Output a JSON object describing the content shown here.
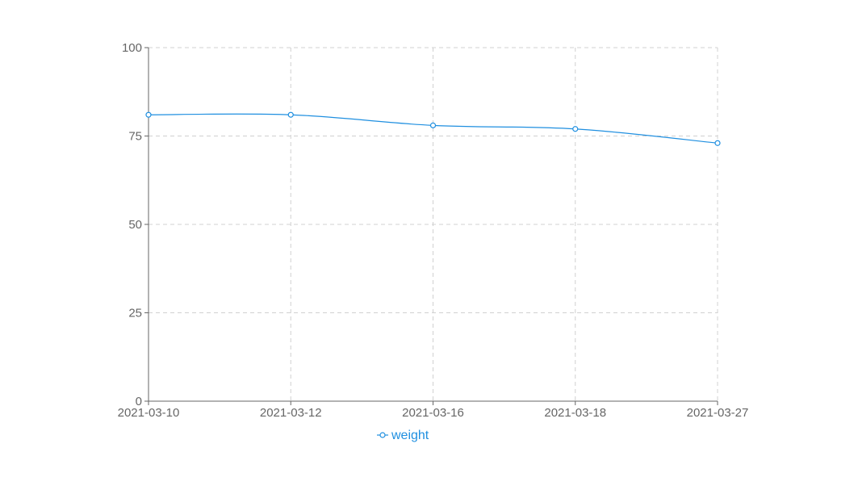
{
  "chart_data": {
    "type": "line",
    "x": [
      "2021-03-10",
      "2021-03-12",
      "2021-03-16",
      "2021-03-18",
      "2021-03-27"
    ],
    "series": [
      {
        "name": "weight",
        "values": [
          81,
          81,
          78,
          77,
          73
        ]
      }
    ],
    "y_ticks": [
      "0",
      "25",
      "50",
      "75",
      "100"
    ],
    "x_tick_labels": [
      "2021-03-10",
      "2021-03-12",
      "2021-03-16",
      "2021-03-18",
      "2021-03-27"
    ],
    "ylim": [
      0,
      100
    ],
    "x_scale": "category",
    "grid": "on (dashed)",
    "legend": "bottom-center",
    "colors": {
      "series": "#1f8fe0",
      "grid": "#d0d0d0",
      "axis": "#666666",
      "tick_text": "#666666"
    }
  }
}
